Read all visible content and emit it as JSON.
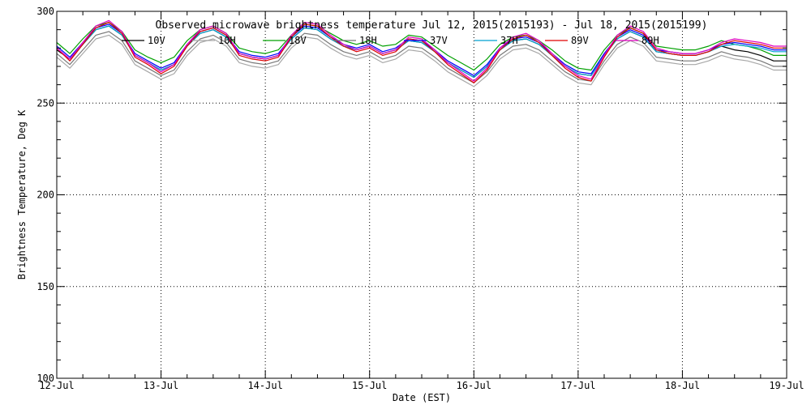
{
  "chart_data": {
    "type": "line",
    "title": "Observed microwave brightness temperature Jul 12, 2015(2015193) - Jul 18, 2015(2015199)",
    "xlabel": "Date (EST)",
    "ylabel": "Brightness Temperature, Deg K",
    "xlim": [
      "2015-07-12",
      "2015-07-19"
    ],
    "ylim": [
      100,
      300
    ],
    "x_ticks": [
      "12-Jul",
      "13-Jul",
      "14-Jul",
      "15-Jul",
      "16-Jul",
      "17-Jul",
      "18-Jul",
      "19-Jul"
    ],
    "y_ticks": [
      100,
      150,
      200,
      250,
      300
    ],
    "grid": true,
    "legend_position": "top",
    "x_unit_note": "x values are days since 2015-07-12 00:00 EST",
    "x": [
      0.0,
      0.125,
      0.25,
      0.375,
      0.5,
      0.625,
      0.75,
      0.875,
      1.0,
      1.125,
      1.25,
      1.375,
      1.5,
      1.625,
      1.75,
      1.875,
      2.0,
      2.125,
      2.25,
      2.375,
      2.5,
      2.625,
      2.75,
      2.875,
      3.0,
      3.125,
      3.25,
      3.375,
      3.5,
      3.625,
      3.75,
      3.875,
      4.0,
      4.125,
      4.25,
      4.375,
      4.5,
      4.625,
      4.75,
      4.875,
      5.0,
      5.125,
      5.25,
      5.375,
      5.5,
      5.625,
      5.75,
      5.875,
      6.0,
      6.125,
      6.25,
      6.375,
      6.5,
      6.625,
      6.75,
      6.875,
      7.0
    ],
    "series": [
      {
        "name": "10V",
        "color": "#000000",
        "values": [
          279,
          274,
          282,
          290,
          292,
          287,
          276,
          272,
          268,
          271,
          281,
          288,
          290,
          286,
          277,
          275,
          274,
          276,
          285,
          291,
          290,
          285,
          281,
          279,
          281,
          277,
          279,
          284,
          283,
          278,
          272,
          268,
          264,
          270,
          279,
          284,
          285,
          282,
          276,
          270,
          266,
          265,
          276,
          285,
          289,
          286,
          278,
          277,
          276,
          276,
          278,
          281,
          279,
          278,
          276,
          273,
          273
        ]
      },
      {
        "name": "10H",
        "color": "#a8a8a8",
        "values": [
          275,
          269,
          277,
          285,
          287,
          282,
          271,
          267,
          263,
          266,
          276,
          283,
          285,
          281,
          272,
          270,
          269,
          271,
          280,
          286,
          285,
          280,
          276,
          274,
          276,
          272,
          274,
          279,
          278,
          273,
          267,
          263,
          259,
          265,
          274,
          279,
          280,
          277,
          271,
          265,
          261,
          260,
          271,
          280,
          284,
          281,
          273,
          272,
          271,
          271,
          273,
          276,
          274,
          273,
          271,
          268,
          268
        ]
      },
      {
        "name": "18V",
        "color": "#00a000",
        "values": [
          283,
          277,
          285,
          292,
          294,
          289,
          279,
          275,
          272,
          275,
          284,
          290,
          292,
          288,
          280,
          278,
          277,
          279,
          287,
          293,
          292,
          288,
          284,
          282,
          284,
          281,
          282,
          287,
          286,
          281,
          276,
          272,
          268,
          274,
          282,
          286,
          287,
          284,
          279,
          273,
          269,
          268,
          279,
          287,
          291,
          288,
          281,
          280,
          279,
          279,
          281,
          284,
          282,
          281,
          279,
          276,
          276
        ]
      },
      {
        "name": "18H",
        "color": "#787878",
        "values": [
          277,
          271,
          279,
          287,
          289,
          284,
          273,
          269,
          265,
          268,
          278,
          285,
          287,
          283,
          274,
          272,
          271,
          273,
          282,
          288,
          287,
          282,
          278,
          276,
          278,
          274,
          276,
          281,
          280,
          275,
          269,
          265,
          261,
          267,
          276,
          281,
          282,
          279,
          273,
          267,
          263,
          262,
          273,
          282,
          286,
          283,
          275,
          274,
          273,
          273,
          275,
          278,
          276,
          275,
          273,
          270,
          270
        ]
      },
      {
        "name": "37V",
        "color": "#0000ff",
        "values": [
          281,
          275,
          283,
          291,
          293,
          288,
          277,
          273,
          269,
          272,
          282,
          289,
          291,
          287,
          278,
          276,
          275,
          277,
          286,
          292,
          291,
          286,
          282,
          280,
          282,
          278,
          280,
          285,
          284,
          279,
          273,
          269,
          265,
          271,
          280,
          285,
          286,
          283,
          277,
          271,
          267,
          266,
          277,
          286,
          290,
          287,
          279,
          278,
          277,
          277,
          279,
          282,
          283,
          282,
          281,
          279,
          279
        ]
      },
      {
        "name": "37H",
        "color": "#00a0d0",
        "values": [
          280,
          274,
          282,
          290,
          292,
          287,
          276,
          272,
          268,
          271,
          281,
          288,
          290,
          286,
          277,
          275,
          274,
          276,
          285,
          291,
          290,
          285,
          281,
          279,
          281,
          277,
          279,
          284,
          283,
          278,
          272,
          268,
          264,
          270,
          279,
          284,
          285,
          282,
          276,
          270,
          266,
          265,
          276,
          285,
          289,
          286,
          278,
          277,
          276,
          276,
          278,
          281,
          282,
          281,
          280,
          278,
          278
        ]
      },
      {
        "name": "89V",
        "color": "#e00000",
        "values": [
          280,
          273,
          282,
          291,
          294,
          288,
          275,
          271,
          266,
          270,
          281,
          289,
          291,
          287,
          276,
          274,
          273,
          275,
          286,
          293,
          292,
          286,
          281,
          278,
          280,
          276,
          278,
          285,
          284,
          278,
          271,
          266,
          261,
          268,
          279,
          285,
          287,
          283,
          276,
          269,
          264,
          262,
          275,
          286,
          291,
          288,
          279,
          277,
          276,
          276,
          278,
          282,
          284,
          283,
          282,
          280,
          280
        ]
      },
      {
        "name": "89H",
        "color": "#e000c0",
        "values": [
          280,
          274,
          283,
          292,
          295,
          289,
          276,
          272,
          267,
          271,
          282,
          290,
          292,
          288,
          277,
          275,
          274,
          276,
          287,
          294,
          293,
          287,
          282,
          279,
          281,
          277,
          279,
          286,
          285,
          279,
          272,
          267,
          262,
          269,
          280,
          286,
          288,
          284,
          277,
          270,
          265,
          263,
          276,
          287,
          292,
          289,
          280,
          278,
          277,
          277,
          279,
          283,
          285,
          284,
          283,
          281,
          281
        ]
      }
    ]
  }
}
